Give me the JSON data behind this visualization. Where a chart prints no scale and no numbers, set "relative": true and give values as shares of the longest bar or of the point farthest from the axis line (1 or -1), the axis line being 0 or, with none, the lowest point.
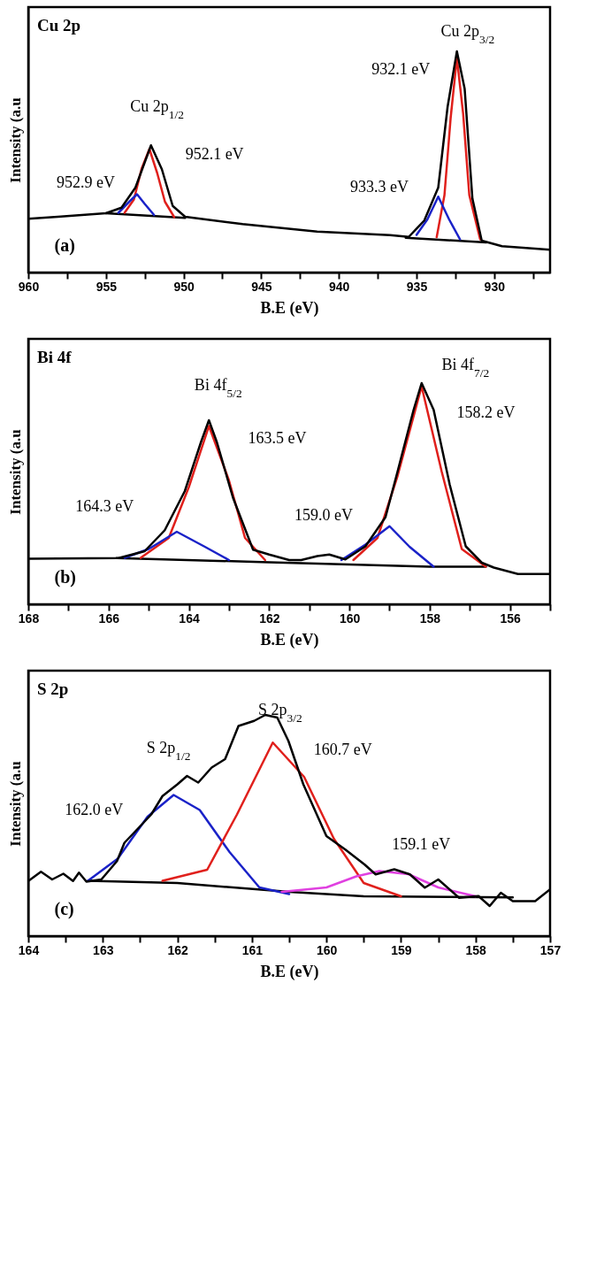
{
  "chart_data": [
    {
      "type": "line",
      "title": "Cu 2p",
      "xlabel": "B.E (eV)",
      "ylabel": "Intensity (a.u",
      "relative": true,
      "tick_labels": "x",
      "xlim": [
        960,
        926.4
      ],
      "xticks": [
        960,
        {
          "value": 957.5,
          "label": null
        },
        955,
        {
          "value": 952.5,
          "label": null
        },
        950,
        {
          "value": 947.5,
          "label": null
        },
        945,
        {
          "value": 942.5,
          "label": null
        },
        940,
        {
          "value": 937.5,
          "label": null
        },
        935,
        {
          "value": 932.5,
          "label": null
        },
        930,
        {
          "value": 927.5,
          "label": null
        }
      ],
      "series": [
        {
          "color": "#000000",
          "x": [
            955,
            949.9
          ],
          "values": [
            0.268,
            0.247
          ]
        },
        {
          "color": "#000000",
          "x": [
            935.7,
            930.5
          ],
          "values": [
            0.157,
            0.136
          ]
        },
        {
          "color": "#e0201c",
          "x": [
            953.8,
            953.2,
            952.7,
            952.2,
            951.7,
            951.2,
            950.6
          ],
          "values": [
            0.27,
            0.33,
            0.47,
            0.558,
            0.45,
            0.32,
            0.25
          ]
        },
        {
          "color": "#1a22c8",
          "x": [
            954.2,
            953.5,
            953.0,
            952.5,
            951.9
          ],
          "values": [
            0.27,
            0.32,
            0.354,
            0.31,
            0.26
          ]
        },
        {
          "color": "#e0201c",
          "x": [
            933.7,
            933.2,
            932.8,
            932.4,
            932.0,
            931.6,
            930.9
          ],
          "values": [
            0.16,
            0.35,
            0.7,
            0.97,
            0.72,
            0.35,
            0.15
          ]
        },
        {
          "color": "#1a22c8",
          "x": [
            935.0,
            934.3,
            933.6,
            932.9,
            932.2
          ],
          "values": [
            0.17,
            0.24,
            0.343,
            0.24,
            0.15
          ]
        },
        {
          "color": "#000000",
          "x": [
            960,
            958.1,
            955,
            954.0,
            953.1,
            952.1,
            951.4,
            950.7,
            949.9,
            946.2,
            941.4,
            936.7,
            935.5,
            934.5,
            933.6,
            933.0,
            932.4,
            931.9,
            931.4,
            930.8,
            929.5,
            926.4
          ],
          "values": [
            0.243,
            0.252,
            0.268,
            0.293,
            0.384,
            0.575,
            0.467,
            0.301,
            0.252,
            0.219,
            0.185,
            0.169,
            0.161,
            0.235,
            0.384,
            0.748,
            1.0,
            0.831,
            0.334,
            0.144,
            0.119,
            0.103
          ]
        }
      ],
      "annotations": [
        "(a)",
        "Cu 2p$_{1/2}$",
        "952.1 eV",
        "952.9 eV",
        "Cu 2p$_{3/2}$",
        "932.1 eV",
        "933.3 eV"
      ]
    },
    {
      "type": "line",
      "title": "Bi 4f",
      "xlabel": "B.E (eV)",
      "ylabel": "Intensity (a.u",
      "relative": true,
      "tick_labels": "x",
      "xlim": [
        168,
        155
      ],
      "xticks": [
        168,
        {
          "value": 167,
          "label": null
        },
        166,
        {
          "value": 165,
          "label": null
        },
        164,
        {
          "value": 163,
          "label": null
        },
        162,
        {
          "value": 161,
          "label": null
        },
        160,
        {
          "value": 159,
          "label": null
        },
        158,
        {
          "value": 157,
          "label": null
        },
        156,
        {
          "value": 155,
          "label": null
        }
      ],
      "series": [
        {
          "color": "#000000",
          "x": [
            165.8,
            162,
            158,
            156.6
          ],
          "values": [
            0.209,
            0.19,
            0.17,
            0.17
          ]
        },
        {
          "color": "#e0201c",
          "x": [
            165.2,
            164.5,
            164.0,
            163.5,
            163.0,
            162.6,
            162.1
          ],
          "values": [
            0.21,
            0.3,
            0.53,
            0.806,
            0.56,
            0.3,
            0.2
          ]
        },
        {
          "color": "#1a22c8",
          "x": [
            165.6,
            165.0,
            164.3,
            163.6,
            163.0
          ],
          "values": [
            0.21,
            0.25,
            0.328,
            0.26,
            0.2
          ]
        },
        {
          "color": "#e0201c",
          "x": [
            159.9,
            159.3,
            158.8,
            158.2,
            157.7,
            157.2,
            156.6
          ],
          "values": [
            0.2,
            0.3,
            0.58,
            0.985,
            0.6,
            0.25,
            0.17
          ]
        },
        {
          "color": "#1a22c8",
          "x": [
            160.2,
            159.6,
            159.0,
            158.5,
            157.9
          ],
          "values": [
            0.2,
            0.27,
            0.353,
            0.26,
            0.17
          ]
        },
        {
          "color": "#000000",
          "x": [
            168,
            165.75,
            165.1,
            164.6,
            164.1,
            163.7,
            163.5,
            163.3,
            162.9,
            162.4,
            162.0,
            161.5,
            161.2,
            160.8,
            160.5,
            160.1,
            159.6,
            159.1,
            158.8,
            158.4,
            158.2,
            157.9,
            157.5,
            157.1,
            156.7,
            156.4,
            155.8,
            155.0
          ],
          "values": [
            0.206,
            0.209,
            0.24,
            0.335,
            0.512,
            0.732,
            0.832,
            0.732,
            0.482,
            0.247,
            0.225,
            0.2,
            0.2,
            0.218,
            0.225,
            0.203,
            0.262,
            0.394,
            0.6,
            0.879,
            1.0,
            0.879,
            0.541,
            0.262,
            0.188,
            0.166,
            0.137,
            0.137
          ]
        }
      ],
      "annotations": [
        "(b)",
        "Bi 4f$_{5/2}$",
        "163.5 eV",
        "164.3 eV",
        "159.0 eV",
        "Bi 4f$_{7/2}$",
        "158.2 eV"
      ]
    },
    {
      "type": "line",
      "title": "S 2p",
      "xlabel": "B.E (eV)",
      "ylabel": "Intensity (a.u",
      "relative": true,
      "tick_labels": "x",
      "xlim": [
        164,
        157
      ],
      "xticks": [
        164,
        {
          "value": 163.5,
          "label": null
        },
        163,
        {
          "value": 162.5,
          "label": null
        },
        162,
        {
          "value": 161.5,
          "label": null
        },
        161,
        {
          "value": 160.5,
          "label": null
        },
        160,
        {
          "value": 159.5,
          "label": null
        },
        159,
        {
          "value": 158.5,
          "label": null
        },
        158,
        {
          "value": 157.5,
          "label": null
        },
        157
      ],
      "series": [
        {
          "color": "#000000",
          "x": [
            163.2,
            162.0,
            160.5,
            159.5,
            157.5
          ],
          "values": [
            0.25,
            0.24,
            0.2,
            0.18,
            0.175
          ]
        },
        {
          "color": "#1a22c8",
          "x": [
            163.2,
            162.8,
            162.4,
            162.05,
            161.7,
            161.3,
            160.9,
            160.5
          ],
          "values": [
            0.25,
            0.35,
            0.54,
            0.638,
            0.57,
            0.38,
            0.22,
            0.19
          ]
        },
        {
          "color": "#e0201c",
          "x": [
            162.2,
            161.6,
            161.2,
            160.72,
            160.3,
            159.9,
            159.5,
            159.0
          ],
          "values": [
            0.25,
            0.3,
            0.55,
            0.875,
            0.72,
            0.44,
            0.24,
            0.18
          ]
        },
        {
          "color": "#e040e0",
          "x": [
            160.6,
            160.0,
            159.6,
            159.29,
            158.9,
            158.5,
            158.0
          ],
          "values": [
            0.2,
            0.22,
            0.27,
            0.294,
            0.28,
            0.22,
            0.18
          ]
        },
        {
          "color": "#000000",
          "x": [
            164,
            163.83,
            163.68,
            163.53,
            163.4,
            163.32,
            163.22,
            163.02,
            162.81,
            162.71,
            162.56,
            162.35,
            162.2,
            162.0,
            161.87,
            161.72,
            161.54,
            161.36,
            161.18,
            160.97,
            160.82,
            160.66,
            160.51,
            160.31,
            160.0,
            159.75,
            159.49,
            159.34,
            159.09,
            158.88,
            158.68,
            158.5,
            158.22,
            157.96,
            157.81,
            157.66,
            157.5,
            157.2,
            157.0
          ],
          "values": [
            0.249,
            0.291,
            0.256,
            0.282,
            0.249,
            0.287,
            0.246,
            0.256,
            0.339,
            0.422,
            0.475,
            0.55,
            0.633,
            0.686,
            0.724,
            0.694,
            0.762,
            0.8,
            0.95,
            0.973,
            1.0,
            0.988,
            0.882,
            0.686,
            0.452,
            0.392,
            0.324,
            0.279,
            0.302,
            0.279,
            0.219,
            0.256,
            0.173,
            0.181,
            0.136,
            0.196,
            0.158,
            0.158,
            0.211
          ]
        }
      ],
      "annotations": [
        "(c)",
        "S 2p$_{3/2}$",
        "S 2p$_{1/2}$",
        "160.7 eV",
        "162.0 eV",
        "159.1 eV"
      ]
    }
  ]
}
